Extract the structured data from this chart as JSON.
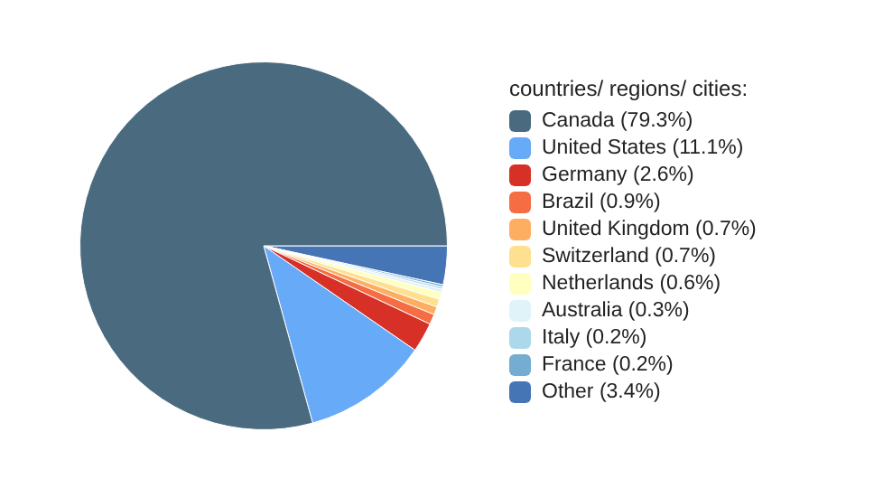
{
  "chart_data": {
    "type": "pie",
    "legend_title": "countries/ regions/ cities:",
    "legend": "right",
    "categories": [
      "Canada (79.3%)",
      "United States (11.1%)",
      "Germany (2.6%)",
      "Brazil (0.9%)",
      "United Kingdom (0.7%)",
      "Switzerland (0.7%)",
      "Netherlands (0.6%)",
      "Australia (0.3%)",
      "Italy (0.2%)",
      "France (0.2%)",
      "Other (3.4%)"
    ],
    "values": [
      79.3,
      11.1,
      2.6,
      0.9,
      0.7,
      0.7,
      0.6,
      0.3,
      0.2,
      0.2,
      3.4
    ],
    "colors": [
      "#4a6a80",
      "#66aaf8",
      "#d73027",
      "#f46d43",
      "#fdae61",
      "#fee090",
      "#ffffbf",
      "#e0f3f8",
      "#abd9e9",
      "#74add1",
      "#4575b4"
    ]
  }
}
